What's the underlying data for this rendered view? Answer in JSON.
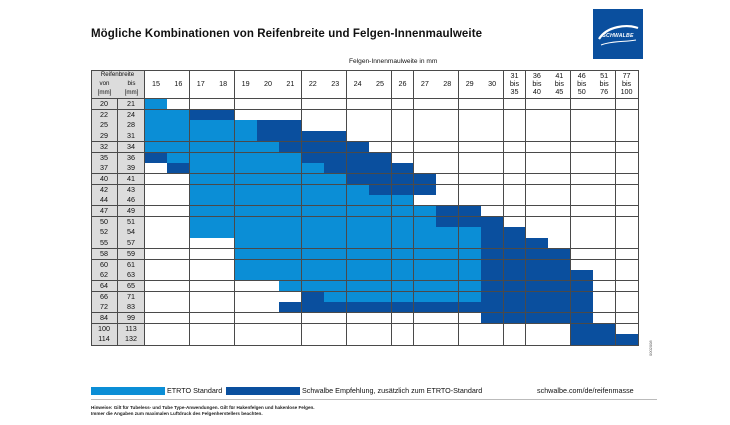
{
  "title": "Mögliche Kombinationen von Reifenbreite und Felgen-Innenmaulweite",
  "brand": {
    "name": "SCHWALBE",
    "color": "#0a4f9e"
  },
  "colors": {
    "etrto": "#0b8ed6",
    "recommendation": "#0a4f9e",
    "empty": "#ffffff",
    "label_bg": "#dcdcdc"
  },
  "column_axis_title": "Felgen-Innenmaulweite in mm",
  "corner": {
    "title": "Reifenbreite",
    "from": "von",
    "to": "bis",
    "unit_from": "[mm]",
    "unit_to": "[mm]"
  },
  "columns": [
    "15",
    "16",
    "17",
    "18",
    "19",
    "20",
    "21",
    "22",
    "23",
    "24",
    "25",
    "26",
    "27",
    "28",
    "29",
    "30",
    "31 bis 35",
    "36 bis 40",
    "41 bis 45",
    "46 bis 50",
    "51 bis 76",
    "77 bis 100"
  ],
  "rows": [
    {
      "from": "20",
      "to": "21",
      "std": [
        0,
        0
      ],
      "rec": []
    },
    {
      "from": "22",
      "to": "24",
      "std": [
        0,
        1
      ],
      "rec": [
        2,
        3
      ]
    },
    {
      "from": "25",
      "to": "28",
      "std": [
        0,
        4
      ],
      "rec": [
        5,
        6
      ]
    },
    {
      "from": "29",
      "to": "31",
      "std": [
        0,
        4
      ],
      "rec": [
        5,
        8
      ]
    },
    {
      "from": "32",
      "to": "34",
      "std": [
        0,
        5
      ],
      "rec": [
        6,
        9
      ]
    },
    {
      "from": "35",
      "to": "36",
      "std": [
        1,
        6
      ],
      "rec": [
        0,
        0,
        7,
        10
      ]
    },
    {
      "from": "37",
      "to": "39",
      "std": [
        2,
        7
      ],
      "rec": [
        1,
        1,
        8,
        11
      ]
    },
    {
      "from": "40",
      "to": "41",
      "std": [
        2,
        8
      ],
      "rec": [
        9,
        12
      ]
    },
    {
      "from": "42",
      "to": "43",
      "std": [
        2,
        9
      ],
      "rec": [
        10,
        12
      ]
    },
    {
      "from": "44",
      "to": "46",
      "std": [
        2,
        11
      ],
      "rec": []
    },
    {
      "from": "47",
      "to": "49",
      "std": [
        2,
        12
      ],
      "rec": [
        13,
        14
      ]
    },
    {
      "from": "50",
      "to": "51",
      "std": [
        2,
        12
      ],
      "rec": [
        13,
        15
      ]
    },
    {
      "from": "52",
      "to": "54",
      "std": [
        2,
        14
      ],
      "rec": [
        15,
        16
      ]
    },
    {
      "from": "55",
      "to": "57",
      "std": [
        4,
        14
      ],
      "rec": [
        15,
        17
      ]
    },
    {
      "from": "58",
      "to": "59",
      "std": [
        4,
        14
      ],
      "rec": [
        15,
        18
      ]
    },
    {
      "from": "60",
      "to": "61",
      "std": [
        4,
        14
      ],
      "rec": [
        15,
        18
      ]
    },
    {
      "from": "62",
      "to": "63",
      "std": [
        4,
        14
      ],
      "rec": [
        15,
        19
      ]
    },
    {
      "from": "64",
      "to": "65",
      "std": [
        6,
        14
      ],
      "rec": [
        15,
        19
      ]
    },
    {
      "from": "66",
      "to": "71",
      "std": [
        8,
        14
      ],
      "rec": [
        7,
        7,
        15,
        19
      ]
    },
    {
      "from": "72",
      "to": "83",
      "std": [],
      "rec": [
        6,
        19
      ]
    },
    {
      "from": "84",
      "to": "99",
      "std": [],
      "rec": [
        15,
        19
      ]
    },
    {
      "from": "100",
      "to": "113",
      "std": [],
      "rec": [
        19,
        20
      ]
    },
    {
      "from": "114",
      "to": "132",
      "std": [],
      "rec": [
        19,
        21
      ]
    }
  ],
  "legend": {
    "etrto_label": "ETRTO Standard",
    "rec_label": "Schwalbe Empfehlung, zusätzlich zum ETRTO-Standard",
    "url": "schwalbe.com/de/reifenmasse"
  },
  "notes": [
    "Hinweise: Gilt für Tubeless- und Tube Type-Anwendungen. Gilt für Hakenfelgen und hakenlose Felgen.",
    "Immer die Angaben zum maximalen Luftdruck des Felgenherstellers beachten."
  ],
  "doc_code": "0002008"
}
